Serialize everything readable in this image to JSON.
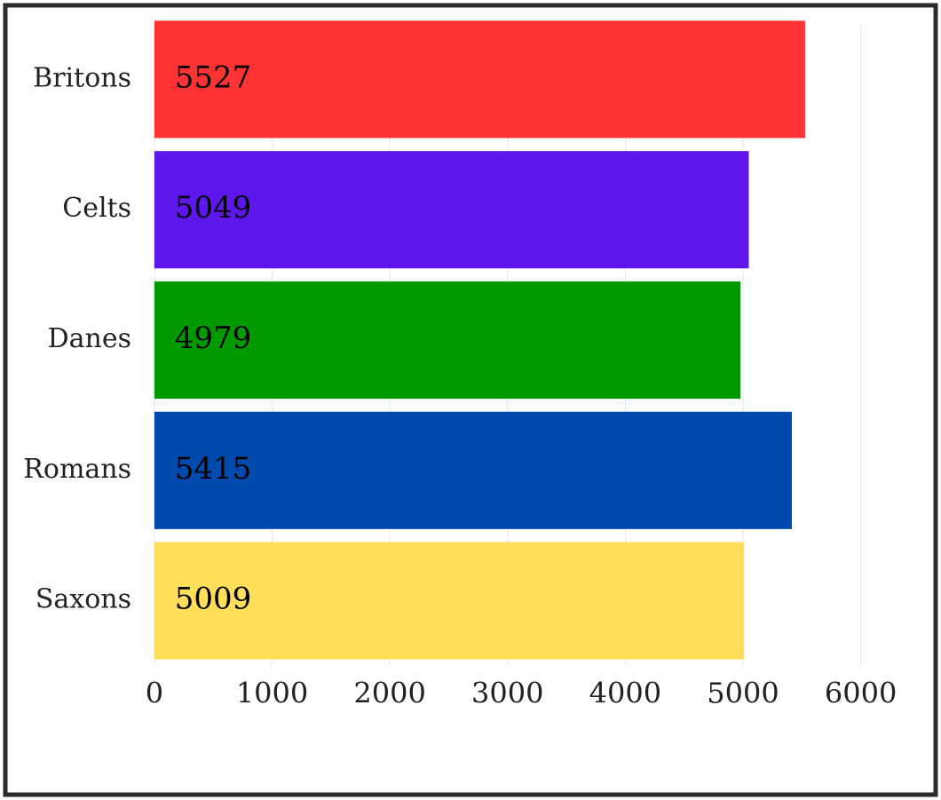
{
  "chart_data": {
    "type": "hbar",
    "categories": [
      "Britons",
      "Celts",
      "Danes",
      "Romans",
      "Saxons"
    ],
    "values": [
      5527,
      5049,
      4979,
      5415,
      5009
    ],
    "colors": [
      "#ff3333",
      "#5e17eb",
      "#009900",
      "#004aad",
      "#ffde59"
    ],
    "xlim": [
      -105,
      6380
    ],
    "xticks": [
      0,
      1000,
      2000,
      3000,
      4000,
      5000,
      6000
    ],
    "grid": true
  }
}
